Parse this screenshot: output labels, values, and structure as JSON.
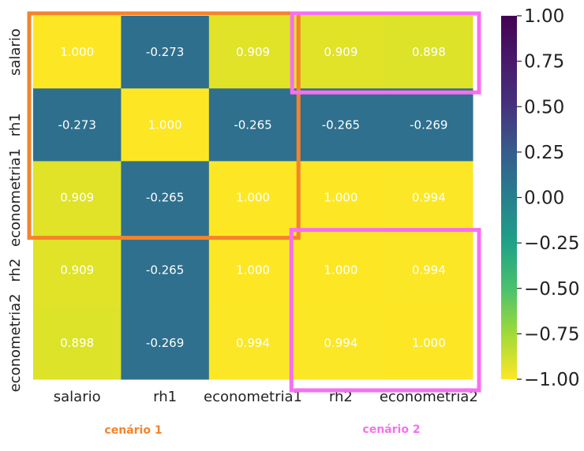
{
  "chart_data": {
    "type": "heatmap",
    "title": "",
    "row_labels": [
      "salario",
      "rh1",
      "econometria1",
      "rh2",
      "econometria2"
    ],
    "col_labels": [
      "salario",
      "rh1",
      "econometria1",
      "rh2",
      "econometria2"
    ],
    "values": [
      [
        1.0,
        -0.273,
        0.909,
        0.909,
        0.898
      ],
      [
        -0.273,
        1.0,
        -0.265,
        -0.265,
        -0.269
      ],
      [
        0.909,
        -0.265,
        1.0,
        1.0,
        0.994
      ],
      [
        0.909,
        -0.265,
        1.0,
        1.0,
        0.994
      ],
      [
        0.898,
        -0.269,
        0.994,
        0.994,
        1.0
      ]
    ],
    "value_labels": [
      [
        "1.000",
        "-0.273",
        "0.909",
        "0.909",
        "0.898"
      ],
      [
        "-0.273",
        "1.000",
        "-0.265",
        "-0.265",
        "-0.269"
      ],
      [
        "0.909",
        "-0.265",
        "1.000",
        "1.000",
        "0.994"
      ],
      [
        "0.909",
        "-0.265",
        "1.000",
        "1.000",
        "0.994"
      ],
      [
        "0.898",
        "-0.269",
        "0.994",
        "0.994",
        "1.000"
      ]
    ],
    "colormap": "viridis",
    "vmin": -1.0,
    "vmax": 1.0,
    "colorbar_ticks": [
      "1.00",
      "0.75",
      "0.50",
      "0.25",
      "0.00",
      "−0.25",
      "−0.50",
      "−0.75",
      "−1.00"
    ],
    "annotations": [
      {
        "label": "cenário 1",
        "color": "#f5832a",
        "rows": [
          0,
          2
        ],
        "cols": [
          0,
          2
        ]
      },
      {
        "label": "cenário 2",
        "color": "#f76ff0",
        "rows": [
          0,
          0
        ],
        "cols": [
          3,
          4
        ]
      },
      {
        "label": "cenário 2",
        "color": "#f76ff0",
        "rows": [
          3,
          4
        ],
        "cols": [
          3,
          4
        ]
      }
    ],
    "scenario_labels": [
      {
        "text": "cenário 1",
        "color": "#f5832a"
      },
      {
        "text": "cenário 2",
        "color": "#f76ff0"
      }
    ]
  }
}
